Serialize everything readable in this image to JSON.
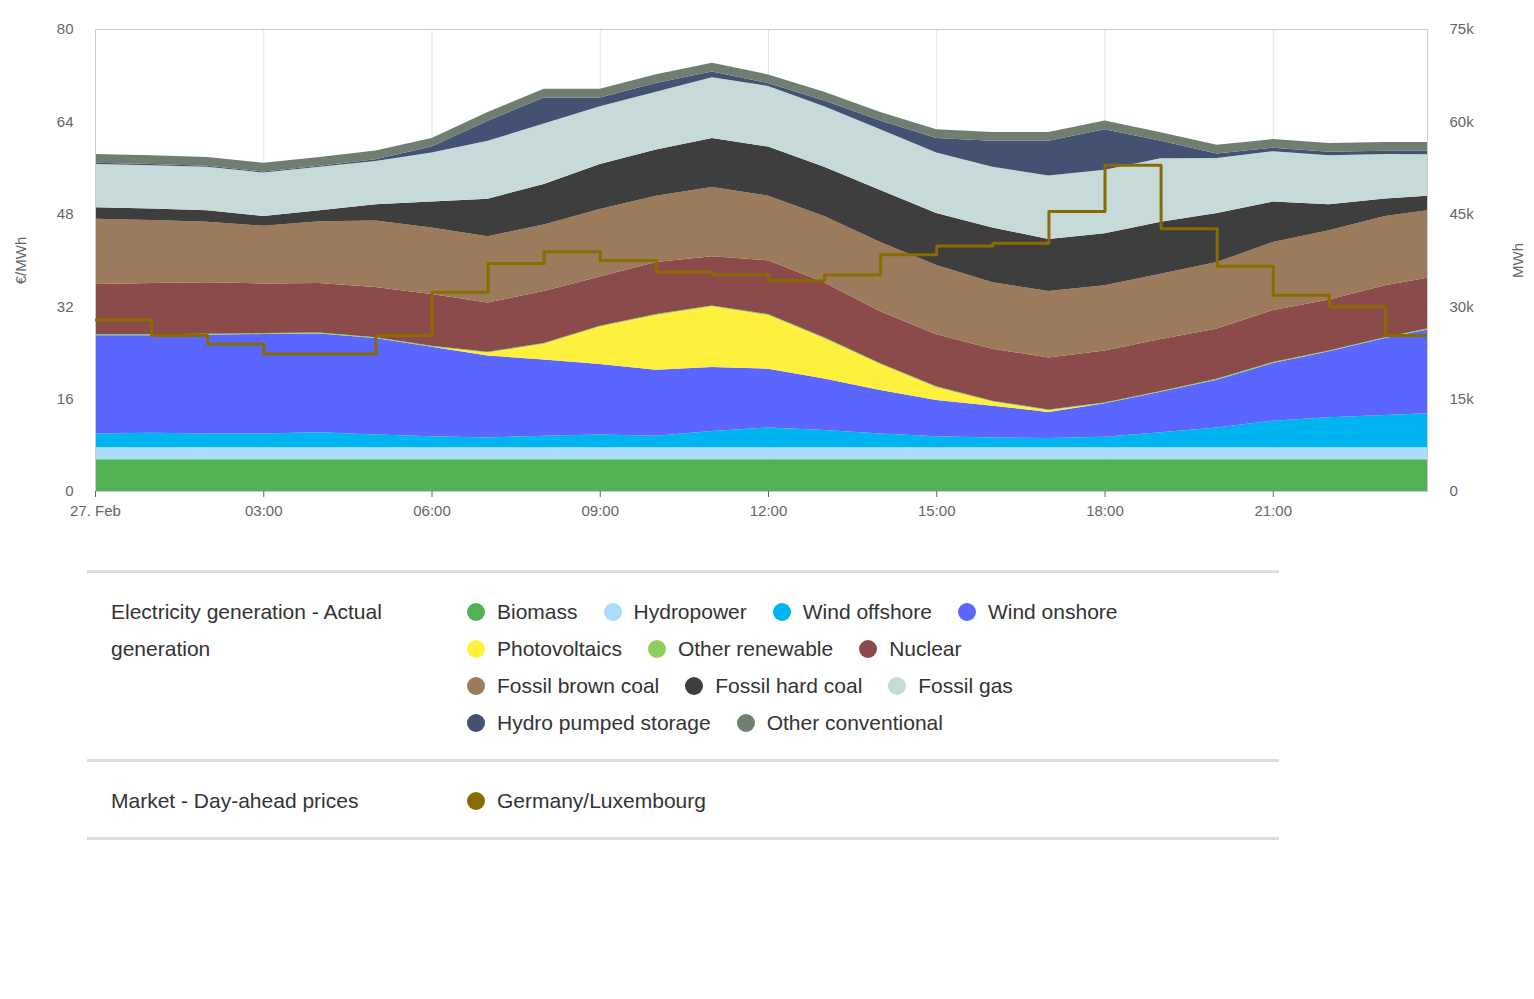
{
  "chart_data": {
    "type": "area",
    "stacked": true,
    "grid": "x",
    "ylabel": "€/MWh",
    "y2label": "MWh",
    "x": [
      0,
      1,
      2,
      3,
      4,
      5,
      6,
      7,
      8,
      9,
      10,
      11,
      12,
      13,
      14,
      15,
      16,
      17,
      18,
      19,
      20,
      21,
      22,
      23,
      23.75
    ],
    "xlim": [
      0,
      23.75
    ],
    "xticks": [
      {
        "value": 0,
        "label": "27. Feb"
      },
      {
        "value": 3,
        "label": "03:00"
      },
      {
        "value": 6,
        "label": "06:00"
      },
      {
        "value": 9,
        "label": "09:00"
      },
      {
        "value": 12,
        "label": "12:00"
      },
      {
        "value": 15,
        "label": "15:00"
      },
      {
        "value": 18,
        "label": "18:00"
      },
      {
        "value": 21,
        "label": "21:00"
      }
    ],
    "ylim": [
      0,
      80
    ],
    "yticks": [
      0,
      16,
      32,
      48,
      64,
      80
    ],
    "y2lim": [
      0,
      75000
    ],
    "y2ticks": [
      0,
      {
        "value": 15000,
        "label": "15k"
      },
      {
        "value": 30000,
        "label": "30k"
      },
      {
        "value": 45000,
        "label": "45k"
      },
      {
        "value": 60000,
        "label": "60k"
      },
      {
        "value": 75000,
        "label": "75k"
      }
    ],
    "legend_groups": [
      {
        "title": "Electricity generation - Actual generation",
        "series": [
          "Biomass",
          "Hydropower",
          "Wind offshore",
          "Wind onshore",
          "Photovoltaics",
          "Other renewable",
          "Nuclear",
          "Fossil brown coal",
          "Fossil hard coal",
          "Fossil gas",
          "Hydro pumped storage",
          "Other conventional"
        ]
      },
      {
        "title": "Market - Day-ahead prices",
        "series": [
          "Germany/Luxembourg"
        ]
      }
    ],
    "series": [
      {
        "name": "Biomass",
        "color": "#52b152",
        "axis": "y2",
        "type": "area",
        "values": [
          5150,
          5150,
          5150,
          5150,
          5150,
          5150,
          5150,
          5150,
          5150,
          5150,
          5150,
          5150,
          5150,
          5150,
          5150,
          5150,
          5150,
          5150,
          5150,
          5150,
          5150,
          5150,
          5150,
          5150,
          5150
        ]
      },
      {
        "name": "Hydropower",
        "color": "#a9def7",
        "axis": "y2",
        "type": "area",
        "values": [
          1950,
          1950,
          1950,
          1950,
          1950,
          1950,
          1950,
          1950,
          1950,
          1950,
          1950,
          1950,
          1950,
          1950,
          1950,
          1950,
          1950,
          1950,
          1950,
          1950,
          1950,
          1950,
          1950,
          1950,
          1950
        ]
      },
      {
        "name": "Wind offshore",
        "color": "#00b5ef",
        "axis": "y2",
        "type": "area",
        "values": [
          2250,
          2340,
          2250,
          2250,
          2440,
          2060,
          1780,
          1590,
          1880,
          2060,
          1880,
          2630,
          3190,
          2810,
          2250,
          1780,
          1590,
          1500,
          1690,
          2440,
          3190,
          4310,
          4880,
          5250,
          5530
        ]
      },
      {
        "name": "Wind onshore",
        "color": "#5a66fe",
        "axis": "y2",
        "type": "area",
        "values": [
          15940,
          15840,
          16030,
          16130,
          16030,
          15660,
          14530,
          13310,
          12380,
          11440,
          10690,
          10410,
          9560,
          8340,
          7030,
          5910,
          5160,
          4220,
          5440,
          6560,
          7780,
          9380,
          10690,
          12470,
          13590
        ]
      },
      {
        "name": "Photovoltaics",
        "color": "#fff03d",
        "axis": "y2",
        "type": "area",
        "values": [
          0,
          0,
          0,
          0,
          0,
          0,
          0,
          470,
          2530,
          6090,
          8910,
          9840,
          8720,
          6560,
          4220,
          2060,
          660,
          280,
          0,
          0,
          0,
          0,
          0,
          0,
          0
        ]
      },
      {
        "name": "Other renewable",
        "color": "#8dd05a",
        "axis": "y2",
        "type": "area",
        "values": [
          150,
          150,
          150,
          150,
          150,
          150,
          150,
          150,
          150,
          150,
          150,
          150,
          150,
          150,
          150,
          150,
          150,
          150,
          150,
          150,
          150,
          150,
          150,
          150,
          150
        ]
      },
      {
        "name": "Nuclear",
        "color": "#8b4b4b",
        "axis": "y2",
        "type": "area",
        "values": [
          8160,
          8340,
          8340,
          8060,
          8060,
          8160,
          8440,
          7970,
          8440,
          7970,
          8440,
          7970,
          8720,
          8910,
          8440,
          8440,
          8440,
          8440,
          8440,
          8440,
          8160,
          8440,
          8250,
          8440,
          8250
        ]
      },
      {
        "name": "Fossil brown coal",
        "color": "#9b7b5b",
        "axis": "y2",
        "type": "area",
        "values": [
          10590,
          10220,
          9840,
          9380,
          10030,
          10780,
          10780,
          10780,
          10780,
          10970,
          10780,
          11250,
          10500,
          10780,
          11250,
          11250,
          10780,
          10780,
          10590,
          10590,
          10780,
          11060,
          11250,
          11250,
          10970
        ]
      },
      {
        "name": "Fossil hard coal",
        "color": "#3e3e3e",
        "axis": "y2",
        "type": "area",
        "values": [
          1880,
          1880,
          1880,
          1590,
          1780,
          2630,
          4220,
          6090,
          6560,
          7310,
          7500,
          7970,
          7970,
          7970,
          8440,
          8440,
          8910,
          8440,
          8440,
          8440,
          7970,
          6560,
          4220,
          2810,
          2340
        ]
      },
      {
        "name": "Fossil gas",
        "color": "#c6dbd9",
        "axis": "y2",
        "type": "area",
        "values": [
          7030,
          7030,
          7030,
          7030,
          7030,
          7030,
          7970,
          9380,
          9840,
          9380,
          9380,
          9840,
          9840,
          9840,
          9840,
          9840,
          9840,
          10310,
          10310,
          10310,
          8910,
          8160,
          7970,
          7220,
          6750
        ]
      },
      {
        "name": "Hydro pumped storage",
        "color": "#435173",
        "axis": "y2",
        "type": "area",
        "values": [
          190,
          190,
          190,
          190,
          190,
          280,
          940,
          3280,
          4220,
          1410,
          1410,
          940,
          470,
          940,
          1410,
          2340,
          4220,
          5630,
          6560,
          2810,
          750,
          560,
          560,
          560,
          560
        ]
      },
      {
        "name": "Other conventional",
        "color": "#6f7e70",
        "axis": "y2",
        "type": "area",
        "values": [
          1410,
          1410,
          1410,
          1410,
          1410,
          1410,
          1410,
          1410,
          1410,
          1410,
          1410,
          1410,
          1410,
          1410,
          1410,
          1410,
          1410,
          1410,
          1410,
          1410,
          1410,
          1410,
          1410,
          1410,
          1410
        ]
      },
      {
        "name": "Germany/Luxembourg",
        "color": "#8a6b00",
        "type": "line",
        "line_style": "step",
        "values": [
          29.7,
          27,
          25.5,
          23.8,
          23.8,
          27,
          34.5,
          39.5,
          41.5,
          40,
          38,
          37.5,
          36.5,
          37.5,
          41,
          42.5,
          43,
          48.5,
          56.5,
          45.5,
          39,
          34,
          32,
          27,
          27
        ]
      }
    ]
  }
}
